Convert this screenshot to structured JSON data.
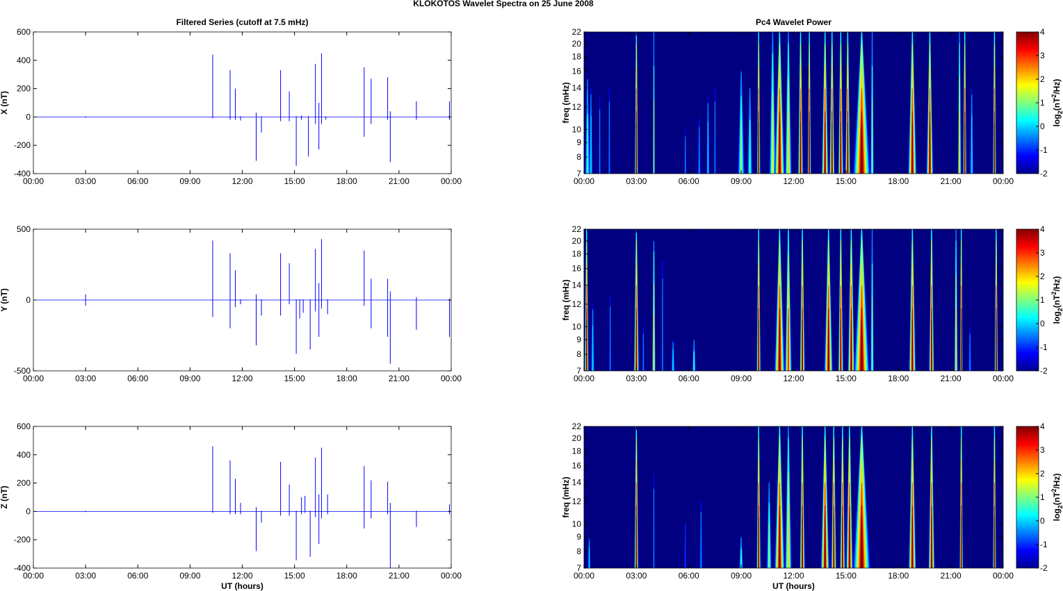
{
  "title": "KLOKOTOS Wavelet Spectra on 25 June      2008",
  "chart_data": [
    {
      "type": "line",
      "title": "Filtered Series (cutoff at 7.5 mHz)",
      "ylabel": "X (nT)",
      "xlabel": "",
      "ylim": [
        -400,
        600
      ],
      "yticks": [
        "600",
        "400",
        "200",
        "0",
        "-200",
        "-400"
      ],
      "ytick_values": [
        600,
        400,
        200,
        0,
        -200,
        -400
      ],
      "xticks": [
        "00:00",
        "03:00",
        "06:00",
        "09:00",
        "12:00",
        "15:00",
        "18:00",
        "21:00",
        "00:00"
      ],
      "xlim_hours": [
        0,
        24
      ],
      "color": "#0000ff",
      "spikes_hours_max_min": [
        [
          3.0,
          5,
          -5
        ],
        [
          10.3,
          440,
          -10
        ],
        [
          11.3,
          330,
          -20
        ],
        [
          11.6,
          200,
          -20
        ],
        [
          11.9,
          5,
          -25
        ],
        [
          12.8,
          30,
          -310
        ],
        [
          13.1,
          5,
          -110
        ],
        [
          14.2,
          330,
          -30
        ],
        [
          14.7,
          180,
          -30
        ],
        [
          15.1,
          5,
          -345
        ],
        [
          15.4,
          10,
          -20
        ],
        [
          15.8,
          5,
          -280
        ],
        [
          16.2,
          375,
          -50
        ],
        [
          16.4,
          100,
          -230
        ],
        [
          16.55,
          450,
          -50
        ],
        [
          16.8,
          5,
          -20
        ],
        [
          19.0,
          350,
          -140
        ],
        [
          19.4,
          270,
          -50
        ],
        [
          20.35,
          280,
          -20
        ],
        [
          20.5,
          40,
          -320
        ],
        [
          22.0,
          110,
          -20
        ],
        [
          23.9,
          110,
          -20
        ]
      ]
    },
    {
      "type": "line",
      "title": "",
      "ylabel": "Y (nT)",
      "xlabel": "",
      "ylim": [
        -500,
        500
      ],
      "yticks": [
        "500",
        "0",
        "-500"
      ],
      "ytick_values": [
        500,
        0,
        -500
      ],
      "xticks": [
        "00:00",
        "03:00",
        "06:00",
        "09:00",
        "12:00",
        "15:00",
        "18:00",
        "21:00",
        "00:00"
      ],
      "xlim_hours": [
        0,
        24
      ],
      "color": "#0000ff",
      "spikes_hours_max_min": [
        [
          3.0,
          40,
          -40
        ],
        [
          10.3,
          420,
          -120
        ],
        [
          11.3,
          330,
          -200
        ],
        [
          11.6,
          210,
          -50
        ],
        [
          11.9,
          5,
          -30
        ],
        [
          12.8,
          40,
          -320
        ],
        [
          13.1,
          5,
          -110
        ],
        [
          14.2,
          330,
          -110
        ],
        [
          14.7,
          260,
          -30
        ],
        [
          15.1,
          5,
          -380
        ],
        [
          15.3,
          5,
          -130
        ],
        [
          15.5,
          5,
          -90
        ],
        [
          15.9,
          5,
          -350
        ],
        [
          16.2,
          360,
          -80
        ],
        [
          16.4,
          120,
          -260
        ],
        [
          16.55,
          430,
          -60
        ],
        [
          16.9,
          5,
          -100
        ],
        [
          19.0,
          350,
          -40
        ],
        [
          19.4,
          150,
          -200
        ],
        [
          20.35,
          150,
          -260
        ],
        [
          20.5,
          60,
          -450
        ],
        [
          22.0,
          20,
          -210
        ],
        [
          23.9,
          10,
          -260
        ]
      ]
    },
    {
      "type": "line",
      "title": "",
      "ylabel": "Z (nT)",
      "xlabel": "UT (hours)",
      "ylim": [
        -400,
        600
      ],
      "yticks": [
        "600",
        "400",
        "200",
        "0",
        "-200",
        "-400"
      ],
      "ytick_values": [
        600,
        400,
        200,
        0,
        -200,
        -400
      ],
      "xticks": [
        "00:00",
        "03:00",
        "06:00",
        "09:00",
        "12:00",
        "15:00",
        "18:00",
        "21:00",
        "00:00"
      ],
      "xlim_hours": [
        0,
        24
      ],
      "color": "#0000ff",
      "spikes_hours_max_min": [
        [
          3.0,
          5,
          -5
        ],
        [
          10.3,
          460,
          -10
        ],
        [
          11.3,
          360,
          -20
        ],
        [
          11.6,
          230,
          -20
        ],
        [
          11.9,
          60,
          -20
        ],
        [
          12.8,
          30,
          -280
        ],
        [
          13.1,
          5,
          -80
        ],
        [
          14.2,
          350,
          -30
        ],
        [
          14.7,
          190,
          -30
        ],
        [
          15.1,
          5,
          -345
        ],
        [
          15.4,
          100,
          -20
        ],
        [
          15.6,
          110,
          -10
        ],
        [
          15.9,
          5,
          -320
        ],
        [
          16.2,
          380,
          -40
        ],
        [
          16.4,
          120,
          -230
        ],
        [
          16.55,
          450,
          -50
        ],
        [
          16.9,
          120,
          -20
        ],
        [
          19.0,
          320,
          -120
        ],
        [
          19.4,
          220,
          -50
        ],
        [
          20.35,
          210,
          -20
        ],
        [
          20.5,
          60,
          -400
        ],
        [
          22.0,
          5,
          -110
        ],
        [
          23.9,
          50,
          -20
        ]
      ]
    },
    {
      "type": "heatmap",
      "title": "Pc4 Wavelet Power",
      "ylabel": "freq (mHz)",
      "xlabel": "",
      "ylim": [
        7,
        22
      ],
      "yscale": "log",
      "yticks": [
        "22",
        "20",
        "18",
        "16",
        "14",
        "12",
        "10",
        "9",
        "8",
        "7"
      ],
      "ytick_values": [
        22,
        20,
        18,
        16,
        14,
        12,
        10,
        9,
        8,
        7
      ],
      "xticks": [
        "00:00",
        "03:00",
        "06:00",
        "09:00",
        "12:00",
        "15:00",
        "18:00",
        "21:00",
        "00:00"
      ],
      "xlim_hours": [
        0,
        24
      ],
      "colorbar": {
        "label": "log2(nT2/Hz)",
        "range": [
          -2,
          4
        ],
        "ticks": [
          "4",
          "3",
          "2",
          "1",
          "0",
          "-1",
          "-2"
        ],
        "tick_values": [
          4,
          3,
          2,
          1,
          0,
          -1,
          -2
        ]
      },
      "bursts_hours_halfwidth_topfreq_power": [
        [
          0.2,
          0.15,
          15,
          0.5
        ],
        [
          0.4,
          0.1,
          14,
          0
        ],
        [
          0.9,
          0.05,
          13,
          -0.5
        ],
        [
          1.45,
          0.05,
          14,
          -0.5
        ],
        [
          3.0,
          0.1,
          22,
          4
        ],
        [
          4.0,
          0.05,
          22,
          1
        ],
        [
          5.8,
          0.05,
          10,
          -0.5
        ],
        [
          6.6,
          0.08,
          11,
          -0.5
        ],
        [
          7.1,
          0.08,
          13,
          0
        ],
        [
          7.5,
          0.05,
          14,
          -0.5
        ],
        [
          9.0,
          0.2,
          16,
          1
        ],
        [
          9.5,
          0.15,
          14,
          0.5
        ],
        [
          10.0,
          0.1,
          22,
          4
        ],
        [
          10.8,
          0.2,
          22,
          1.5
        ],
        [
          11.2,
          0.3,
          22,
          4
        ],
        [
          11.7,
          0.2,
          22,
          2
        ],
        [
          12.4,
          0.15,
          22,
          4
        ],
        [
          12.9,
          0.1,
          22,
          4
        ],
        [
          13.8,
          0.2,
          22,
          4
        ],
        [
          14.2,
          0.15,
          22,
          4
        ],
        [
          14.7,
          0.15,
          22,
          4
        ],
        [
          15.1,
          0.15,
          22,
          4
        ],
        [
          15.9,
          0.5,
          22,
          4
        ],
        [
          16.5,
          0.1,
          22,
          1
        ],
        [
          18.8,
          0.25,
          22,
          4
        ],
        [
          19.8,
          0.2,
          22,
          4
        ],
        [
          21.5,
          0.1,
          22,
          2
        ],
        [
          21.8,
          0.1,
          22,
          4
        ],
        [
          22.2,
          0.1,
          14,
          0
        ],
        [
          23.5,
          0.1,
          22,
          4
        ]
      ]
    },
    {
      "type": "heatmap",
      "title": "",
      "ylabel": "freq (mHz)",
      "xlabel": "",
      "ylim": [
        7,
        22
      ],
      "yscale": "log",
      "yticks": [
        "22",
        "20",
        "18",
        "16",
        "14",
        "12",
        "10",
        "9",
        "8",
        "7"
      ],
      "ytick_values": [
        22,
        20,
        18,
        16,
        14,
        12,
        10,
        9,
        8,
        7
      ],
      "xticks": [
        "00:00",
        "03:00",
        "06:00",
        "09:00",
        "12:00",
        "15:00",
        "18:00",
        "21:00",
        "00:00"
      ],
      "xlim_hours": [
        0,
        24
      ],
      "colorbar": {
        "label": "log2(nT2/Hz)",
        "range": [
          -2,
          4
        ],
        "ticks": [
          "4",
          "3",
          "2",
          "1",
          "0",
          "-1",
          "-2"
        ],
        "tick_values": [
          4,
          3,
          2,
          1,
          0,
          -1,
          -2
        ]
      },
      "bursts_hours_halfwidth_topfreq_power": [
        [
          0.15,
          0.12,
          22,
          4
        ],
        [
          0.5,
          0.1,
          12,
          0
        ],
        [
          1.5,
          0.05,
          13,
          -0.5
        ],
        [
          3.0,
          0.15,
          22,
          4
        ],
        [
          3.4,
          0.05,
          10,
          -0.5
        ],
        [
          4.0,
          0.1,
          20,
          2
        ],
        [
          4.5,
          0.05,
          17,
          -0.5
        ],
        [
          5.1,
          0.1,
          9,
          0
        ],
        [
          6.3,
          0.1,
          9,
          0.5
        ],
        [
          10.0,
          0.12,
          22,
          4
        ],
        [
          11.2,
          0.3,
          22,
          4
        ],
        [
          11.7,
          0.2,
          22,
          3
        ],
        [
          12.5,
          0.15,
          22,
          4
        ],
        [
          14.0,
          0.25,
          22,
          4
        ],
        [
          14.7,
          0.15,
          22,
          4
        ],
        [
          15.3,
          0.2,
          22,
          4
        ],
        [
          15.9,
          0.45,
          22,
          4
        ],
        [
          16.5,
          0.1,
          22,
          1
        ],
        [
          18.8,
          0.2,
          22,
          4
        ],
        [
          19.9,
          0.15,
          22,
          4
        ],
        [
          21.3,
          0.1,
          22,
          2
        ],
        [
          21.6,
          0.08,
          22,
          4
        ],
        [
          22.1,
          0.08,
          10,
          -0.5
        ],
        [
          23.6,
          0.1,
          22,
          4
        ]
      ]
    },
    {
      "type": "heatmap",
      "title": "",
      "ylabel": "freq (mHz)",
      "xlabel": "UT (hours)",
      "ylim": [
        7,
        22
      ],
      "yscale": "log",
      "yticks": [
        "22",
        "20",
        "18",
        "16",
        "14",
        "12",
        "10",
        "9",
        "8",
        "7"
      ],
      "ytick_values": [
        22,
        20,
        18,
        16,
        14,
        12,
        10,
        9,
        8,
        7
      ],
      "xticks": [
        "00:00",
        "03:00",
        "06:00",
        "09:00",
        "12:00",
        "15:00",
        "18:00",
        "21:00",
        "00:00"
      ],
      "xlim_hours": [
        0,
        24
      ],
      "colorbar": {
        "label": "log2(nT2/Hz)",
        "range": [
          -2,
          4
        ],
        "ticks": [
          "4",
          "3",
          "2",
          "1",
          "0",
          "-1",
          "-2"
        ],
        "tick_values": [
          4,
          3,
          2,
          1,
          0,
          -1,
          -2
        ]
      },
      "bursts_hours_halfwidth_topfreq_power": [
        [
          0.3,
          0.08,
          9,
          0
        ],
        [
          3.0,
          0.12,
          22,
          4
        ],
        [
          4.0,
          0.03,
          15,
          -0.5
        ],
        [
          5.8,
          0.05,
          10,
          -1
        ],
        [
          6.7,
          0.08,
          12,
          -0.5
        ],
        [
          9.0,
          0.12,
          9,
          0.5
        ],
        [
          10.0,
          0.12,
          22,
          4
        ],
        [
          10.6,
          0.15,
          14,
          1
        ],
        [
          11.2,
          0.3,
          22,
          4
        ],
        [
          11.7,
          0.2,
          22,
          2
        ],
        [
          12.5,
          0.15,
          22,
          4
        ],
        [
          13.8,
          0.25,
          22,
          4
        ],
        [
          14.3,
          0.15,
          22,
          4
        ],
        [
          14.8,
          0.15,
          22,
          4
        ],
        [
          15.2,
          0.2,
          22,
          4
        ],
        [
          15.9,
          0.5,
          22,
          4
        ],
        [
          18.8,
          0.22,
          22,
          4
        ],
        [
          19.9,
          0.18,
          22,
          4
        ],
        [
          21.6,
          0.1,
          22,
          4
        ],
        [
          23.5,
          0.1,
          22,
          4
        ]
      ]
    }
  ]
}
